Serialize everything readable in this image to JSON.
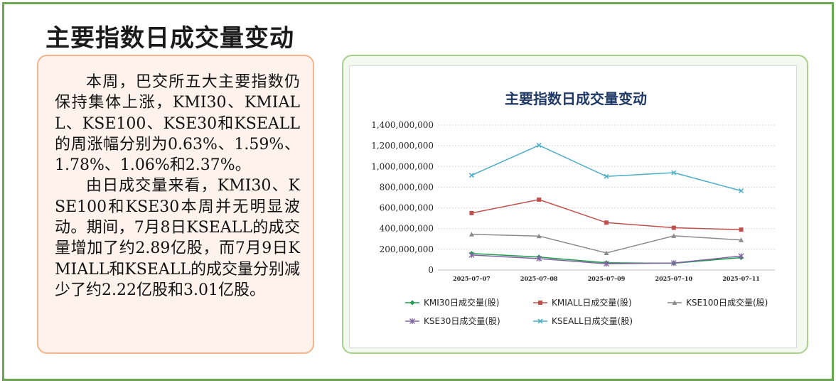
{
  "page": {
    "title": "主要指数日成交量变动"
  },
  "commentary": {
    "paragraphs": [
      "本周，巴交所五大主要指数仍保持集体上涨，KMI30、KMIALL、KSE100、KSE30和KSEALL的周涨幅分别为0.63%、1.59%、1.78%、1.06%和2.37%。",
      "由日成交量来看，KMI30、KSE100和KSE30本周并无明显波动。期间，7月8日KSEALL的成交量增加了约2.89亿股，而7月9日KMIALL和KSEALL的成交量分别减少了约2.22亿股和3.01亿股。"
    ]
  },
  "chart_data": {
    "type": "line",
    "title": "主要指数日成交量变动",
    "xlabel": "",
    "ylabel": "",
    "categories": [
      "2025-07-07",
      "2025-07-08",
      "2025-07-09",
      "2025-07-10",
      "2025-07-11"
    ],
    "ylim": [
      0,
      1400000000
    ],
    "yticks": [
      0,
      200000000,
      400000000,
      600000000,
      800000000,
      1000000000,
      1200000000,
      1400000000
    ],
    "ytick_labels": [
      "0",
      "200,000,000",
      "400,000,000",
      "600,000,000",
      "800,000,000",
      "1,000,000,000",
      "1,200,000,000",
      "1,400,000,000"
    ],
    "grid": true,
    "legend_position": "bottom",
    "series": [
      {
        "name": "KMI30日成交量(股)",
        "color": "#1e9c4c",
        "marker": "diamond",
        "values": [
          160000000,
          125000000,
          70000000,
          65000000,
          120000000
        ]
      },
      {
        "name": "KMIALL日成交量(股)",
        "color": "#c0504d",
        "marker": "square",
        "values": [
          550000000,
          680000000,
          458000000,
          408000000,
          390000000
        ]
      },
      {
        "name": "KSE100日成交量(股)",
        "color": "#8c8c8c",
        "marker": "triangle",
        "values": [
          345000000,
          328000000,
          165000000,
          330000000,
          290000000
        ]
      },
      {
        "name": "KSE30日成交量(股)",
        "color": "#8064a2",
        "marker": "star",
        "values": [
          145000000,
          110000000,
          60000000,
          68000000,
          135000000
        ]
      },
      {
        "name": "KSEALL日成交量(股)",
        "color": "#4bacc6",
        "marker": "x",
        "values": [
          915000000,
          1205000000,
          904000000,
          940000000,
          765000000
        ]
      }
    ]
  }
}
